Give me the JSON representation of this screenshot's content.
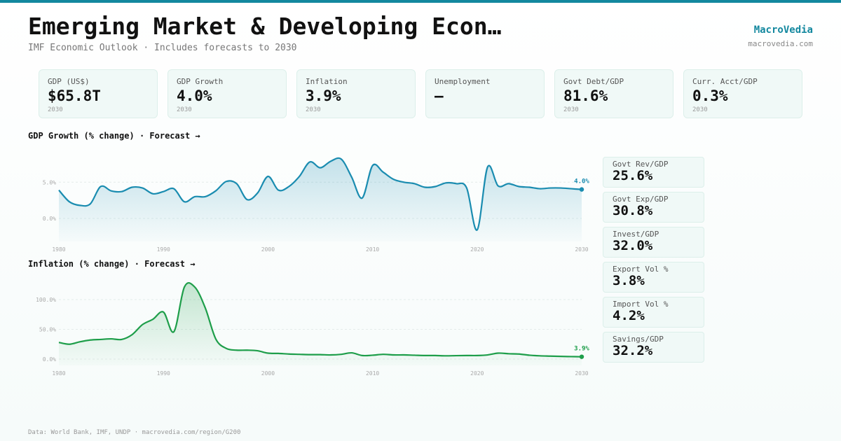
{
  "header": {
    "title": "Emerging Market & Developing Econ…",
    "subtitle": "IMF Economic Outlook · Includes forecasts to 2030",
    "brand": "MacroVedia",
    "brand_url": "macrovedia.com"
  },
  "kpis": [
    {
      "label": "GDP (US$)",
      "value": "$65.8T",
      "sub": "2030"
    },
    {
      "label": "GDP Growth",
      "value": "4.0%",
      "sub": "2030"
    },
    {
      "label": "Inflation",
      "value": "3.9%",
      "sub": "2030"
    },
    {
      "label": "Unemployment",
      "value": "—"
    },
    {
      "label": "Govt Debt/GDP",
      "value": "81.6%",
      "sub": "2030"
    },
    {
      "label": "Curr. Acct/GDP",
      "value": "0.3%",
      "sub": "2030"
    }
  ],
  "side_stats": [
    {
      "label": "Govt Rev/GDP",
      "value": "25.6%"
    },
    {
      "label": "Govt Exp/GDP",
      "value": "30.8%"
    },
    {
      "label": "Invest/GDP",
      "value": "32.0%"
    },
    {
      "label": "Export Vol %",
      "value": "3.8%"
    },
    {
      "label": "Import Vol %",
      "value": "4.2%"
    },
    {
      "label": "Savings/GDP",
      "value": "32.2%"
    }
  ],
  "chart_data": [
    {
      "type": "line",
      "title": "GDP Growth (% change) · Forecast →",
      "color": "#1a8cb0",
      "x": [
        1980,
        1981,
        1982,
        1983,
        1984,
        1985,
        1986,
        1987,
        1988,
        1989,
        1990,
        1991,
        1992,
        1993,
        1994,
        1995,
        1996,
        1997,
        1998,
        1999,
        2000,
        2001,
        2002,
        2003,
        2004,
        2005,
        2006,
        2007,
        2008,
        2009,
        2010,
        2011,
        2012,
        2013,
        2014,
        2015,
        2016,
        2017,
        2018,
        2019,
        2020,
        2021,
        2022,
        2023,
        2024,
        2025,
        2026,
        2027,
        2028,
        2029,
        2030
      ],
      "values": [
        3.9,
        2.3,
        1.8,
        2.0,
        4.4,
        3.8,
        3.7,
        4.3,
        4.2,
        3.4,
        3.7,
        4.1,
        2.3,
        3.0,
        3.0,
        3.8,
        5.1,
        4.8,
        2.6,
        3.5,
        5.8,
        3.9,
        4.4,
        5.8,
        7.8,
        7.0,
        7.9,
        8.2,
        5.7,
        2.8,
        7.3,
        6.4,
        5.4,
        5.0,
        4.8,
        4.3,
        4.4,
        4.9,
        4.8,
        4.2,
        -1.6,
        7.1,
        4.5,
        4.8,
        4.4,
        4.3,
        4.1,
        4.2,
        4.2,
        4.1,
        4.0
      ],
      "value_labels": [
        null,
        null,
        null,
        null,
        null,
        null,
        null,
        null,
        null,
        null,
        null,
        null,
        null,
        null,
        null,
        null,
        null,
        null,
        null,
        null,
        null,
        null,
        null,
        null,
        null,
        null,
        null,
        null,
        null,
        null,
        null,
        null,
        null,
        null,
        null,
        null,
        null,
        null,
        null,
        null,
        null,
        null,
        null,
        null,
        null,
        null,
        null,
        null,
        null,
        null,
        "4.0%"
      ],
      "xlim": [
        1980,
        2030
      ],
      "xticks": [
        1980,
        1990,
        2000,
        2010,
        2020,
        2030
      ],
      "ylim": [
        -3.2,
        8.9
      ],
      "yticks": [
        {
          "value": 0,
          "label": "0.0%"
        },
        {
          "value": 5,
          "label": "5.0%"
        }
      ],
      "grid": true
    },
    {
      "type": "line",
      "title": "Inflation (% change) · Forecast →",
      "color": "#1e9e4a",
      "x": [
        1980,
        1981,
        1982,
        1983,
        1984,
        1985,
        1986,
        1987,
        1988,
        1989,
        1990,
        1991,
        1992,
        1993,
        1994,
        1995,
        1996,
        1997,
        1998,
        1999,
        2000,
        2001,
        2002,
        2003,
        2004,
        2005,
        2006,
        2007,
        2008,
        2009,
        2010,
        2011,
        2012,
        2013,
        2014,
        2015,
        2016,
        2017,
        2018,
        2019,
        2020,
        2021,
        2022,
        2023,
        2024,
        2025,
        2026,
        2027,
        2028,
        2029,
        2030
      ],
      "values": [
        28,
        25,
        29,
        32,
        33,
        34,
        33,
        41,
        58,
        67,
        79,
        46,
        121,
        121,
        86,
        34,
        18,
        15,
        15,
        14,
        10,
        9.5,
        8.5,
        8,
        7.5,
        7.5,
        7,
        8,
        10.5,
        6,
        6.5,
        8,
        7,
        7,
        6.5,
        6,
        6,
        5.5,
        5.8,
        6,
        6,
        7,
        10,
        9,
        8.5,
        6.5,
        5.5,
        5,
        4.5,
        4.2,
        3.9
      ],
      "value_labels": [
        null,
        null,
        null,
        null,
        null,
        null,
        null,
        null,
        null,
        null,
        null,
        null,
        null,
        null,
        null,
        null,
        null,
        null,
        null,
        null,
        null,
        null,
        null,
        null,
        null,
        null,
        null,
        null,
        null,
        null,
        null,
        null,
        null,
        null,
        null,
        null,
        null,
        null,
        null,
        null,
        null,
        null,
        null,
        null,
        null,
        null,
        null,
        null,
        null,
        null,
        "3.9%"
      ],
      "xlim": [
        1980,
        2030
      ],
      "xticks": [
        1980,
        1990,
        2000,
        2010,
        2020,
        2030
      ],
      "ylim": [
        -10.6,
        127
      ],
      "yticks": [
        {
          "value": 0,
          "label": "0.0%"
        },
        {
          "value": 50,
          "label": "50.0%"
        },
        {
          "value": 100,
          "label": "100.0%"
        }
      ],
      "grid": true
    }
  ],
  "footer": "Data: World Bank, IMF, UNDP · macrovedia.com/region/G200"
}
